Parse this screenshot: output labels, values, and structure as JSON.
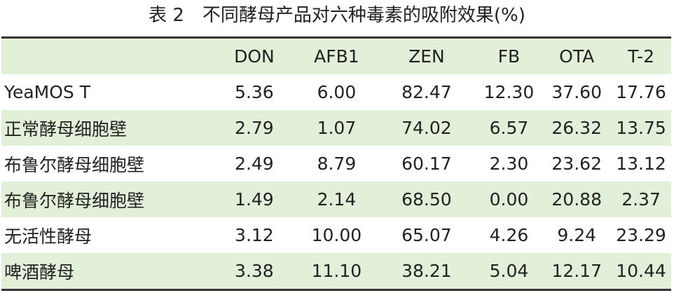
{
  "title": "表 2　不同酵母产品对六种毒素的吸附效果(%)",
  "table": {
    "header": [
      "",
      "DON",
      "AFB1",
      "ZEN",
      "FB",
      "OTA",
      "T-2"
    ],
    "rows": [
      [
        "YeaMOS T",
        "5.36",
        "6.00",
        "82.47",
        "12.30",
        "37.60",
        "17.76"
      ],
      [
        "正常酵母细胞壁",
        "2.79",
        "1.07",
        "74.02",
        "6.57",
        "26.32",
        "13.75"
      ],
      [
        "布鲁尔酵母细胞壁",
        "2.49",
        "8.79",
        "60.17",
        "2.30",
        "23.62",
        "13.12"
      ],
      [
        "布鲁尔酵母细胞壁",
        "1.49",
        "2.14",
        "68.50",
        "0.00",
        "20.88",
        "2.37"
      ],
      [
        "无活性酵母",
        "3.12",
        "10.00",
        "65.07",
        "4.26",
        "9.24",
        "23.29"
      ],
      [
        "啤酒酵母",
        "3.38",
        "11.10",
        "38.21",
        "5.04",
        "12.17",
        "10.44"
      ]
    ]
  }
}
